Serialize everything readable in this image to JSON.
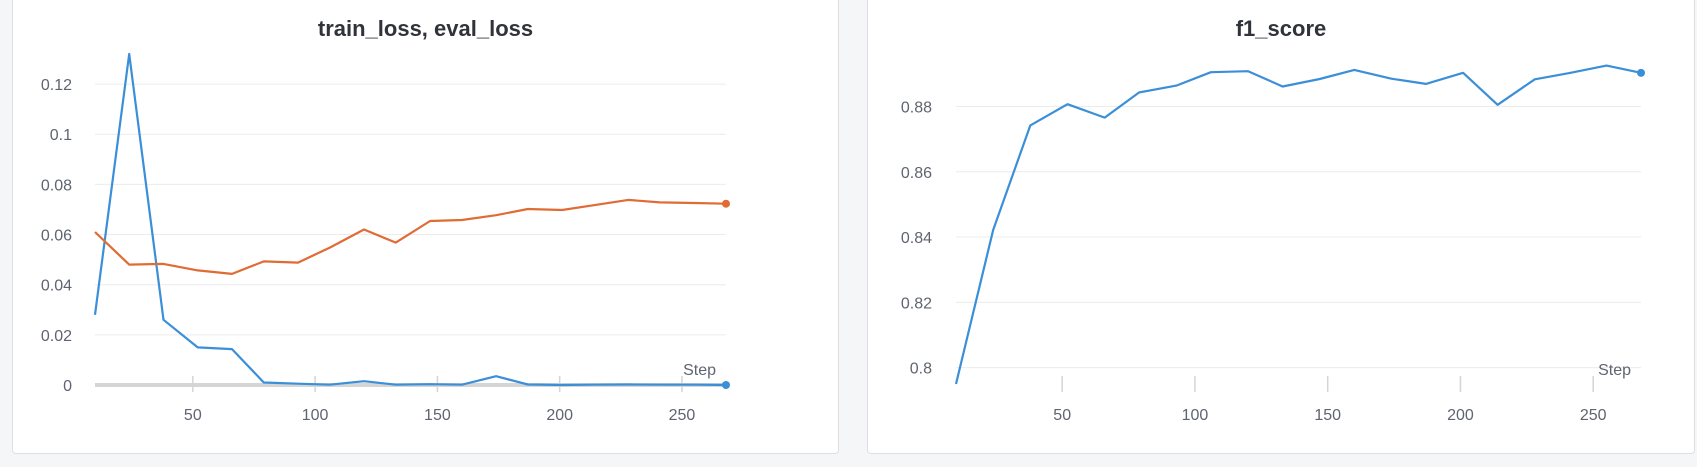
{
  "colors": {
    "blue": "#3b8fd8",
    "orange": "#e06b34",
    "grid": "#ececec",
    "axis": "#d5d5d5"
  },
  "chart_data": [
    {
      "type": "line",
      "title": "train_loss, eval_loss",
      "xlabel": "Step",
      "ylabel": "",
      "xlim": [
        10,
        268
      ],
      "ylim": [
        0,
        0.132
      ],
      "grid": true,
      "x_ticks": [
        "50",
        "100",
        "150",
        "200",
        "250"
      ],
      "y_ticks": [
        "0",
        "0.02",
        "0.04",
        "0.06",
        "0.08",
        "0.1",
        "0.12"
      ],
      "series": [
        {
          "color": "#3b8fd8",
          "points": [
            [
              10,
              0.028
            ],
            [
              24,
              0.132
            ],
            [
              38,
              0.026
            ],
            [
              52,
              0.015
            ],
            [
              66,
              0.0143
            ],
            [
              79,
              0.001
            ],
            [
              93,
              0.0005
            ],
            [
              106,
              0.0001
            ],
            [
              120,
              0.0015
            ],
            [
              133,
              0.0001
            ],
            [
              147,
              0.0003
            ],
            [
              160,
              0.0001
            ],
            [
              174,
              0.0035
            ],
            [
              187,
              0.0002
            ],
            [
              201,
              0.0
            ],
            [
              214,
              0.0001
            ],
            [
              228,
              0.0002
            ],
            [
              241,
              0.0001
            ],
            [
              255,
              0.0001
            ],
            [
              268,
              0.0
            ]
          ]
        },
        {
          "color": "#e06b34",
          "points": [
            [
              10,
              0.061
            ],
            [
              24,
              0.048
            ],
            [
              38,
              0.0483
            ],
            [
              52,
              0.0457
            ],
            [
              66,
              0.0443
            ],
            [
              79,
              0.0493
            ],
            [
              93,
              0.0488
            ],
            [
              106,
              0.0548
            ],
            [
              120,
              0.062
            ],
            [
              133,
              0.0568
            ],
            [
              147,
              0.0654
            ],
            [
              160,
              0.0658
            ],
            [
              174,
              0.0677
            ],
            [
              187,
              0.0702
            ],
            [
              201,
              0.0698
            ],
            [
              214,
              0.0717
            ],
            [
              228,
              0.0738
            ],
            [
              241,
              0.0728
            ],
            [
              255,
              0.0726
            ],
            [
              268,
              0.0723
            ]
          ]
        }
      ]
    },
    {
      "type": "line",
      "title": "f1_score",
      "xlabel": "Step",
      "ylabel": "",
      "xlim": [
        10,
        268
      ],
      "ylim": [
        0.795,
        0.893
      ],
      "grid": true,
      "x_ticks": [
        "50",
        "100",
        "150",
        "200",
        "250"
      ],
      "y_ticks": [
        "0.8",
        "0.82",
        "0.84",
        "0.86",
        "0.88"
      ],
      "series": [
        {
          "color": "#3b8fd8",
          "points": [
            [
              10,
              0.795
            ],
            [
              24,
              0.8422
            ],
            [
              38,
              0.8742
            ],
            [
              52,
              0.8807
            ],
            [
              66,
              0.8766
            ],
            [
              79,
              0.8843
            ],
            [
              93,
              0.8864
            ],
            [
              106,
              0.8905
            ],
            [
              120,
              0.8908
            ],
            [
              133,
              0.8861
            ],
            [
              147,
              0.8884
            ],
            [
              160,
              0.8912
            ],
            [
              174,
              0.8885
            ],
            [
              187,
              0.8869
            ],
            [
              201,
              0.8903
            ],
            [
              214,
              0.8805
            ],
            [
              228,
              0.8883
            ],
            [
              241,
              0.8902
            ],
            [
              255,
              0.8925
            ],
            [
              268,
              0.8903
            ]
          ]
        }
      ]
    }
  ]
}
